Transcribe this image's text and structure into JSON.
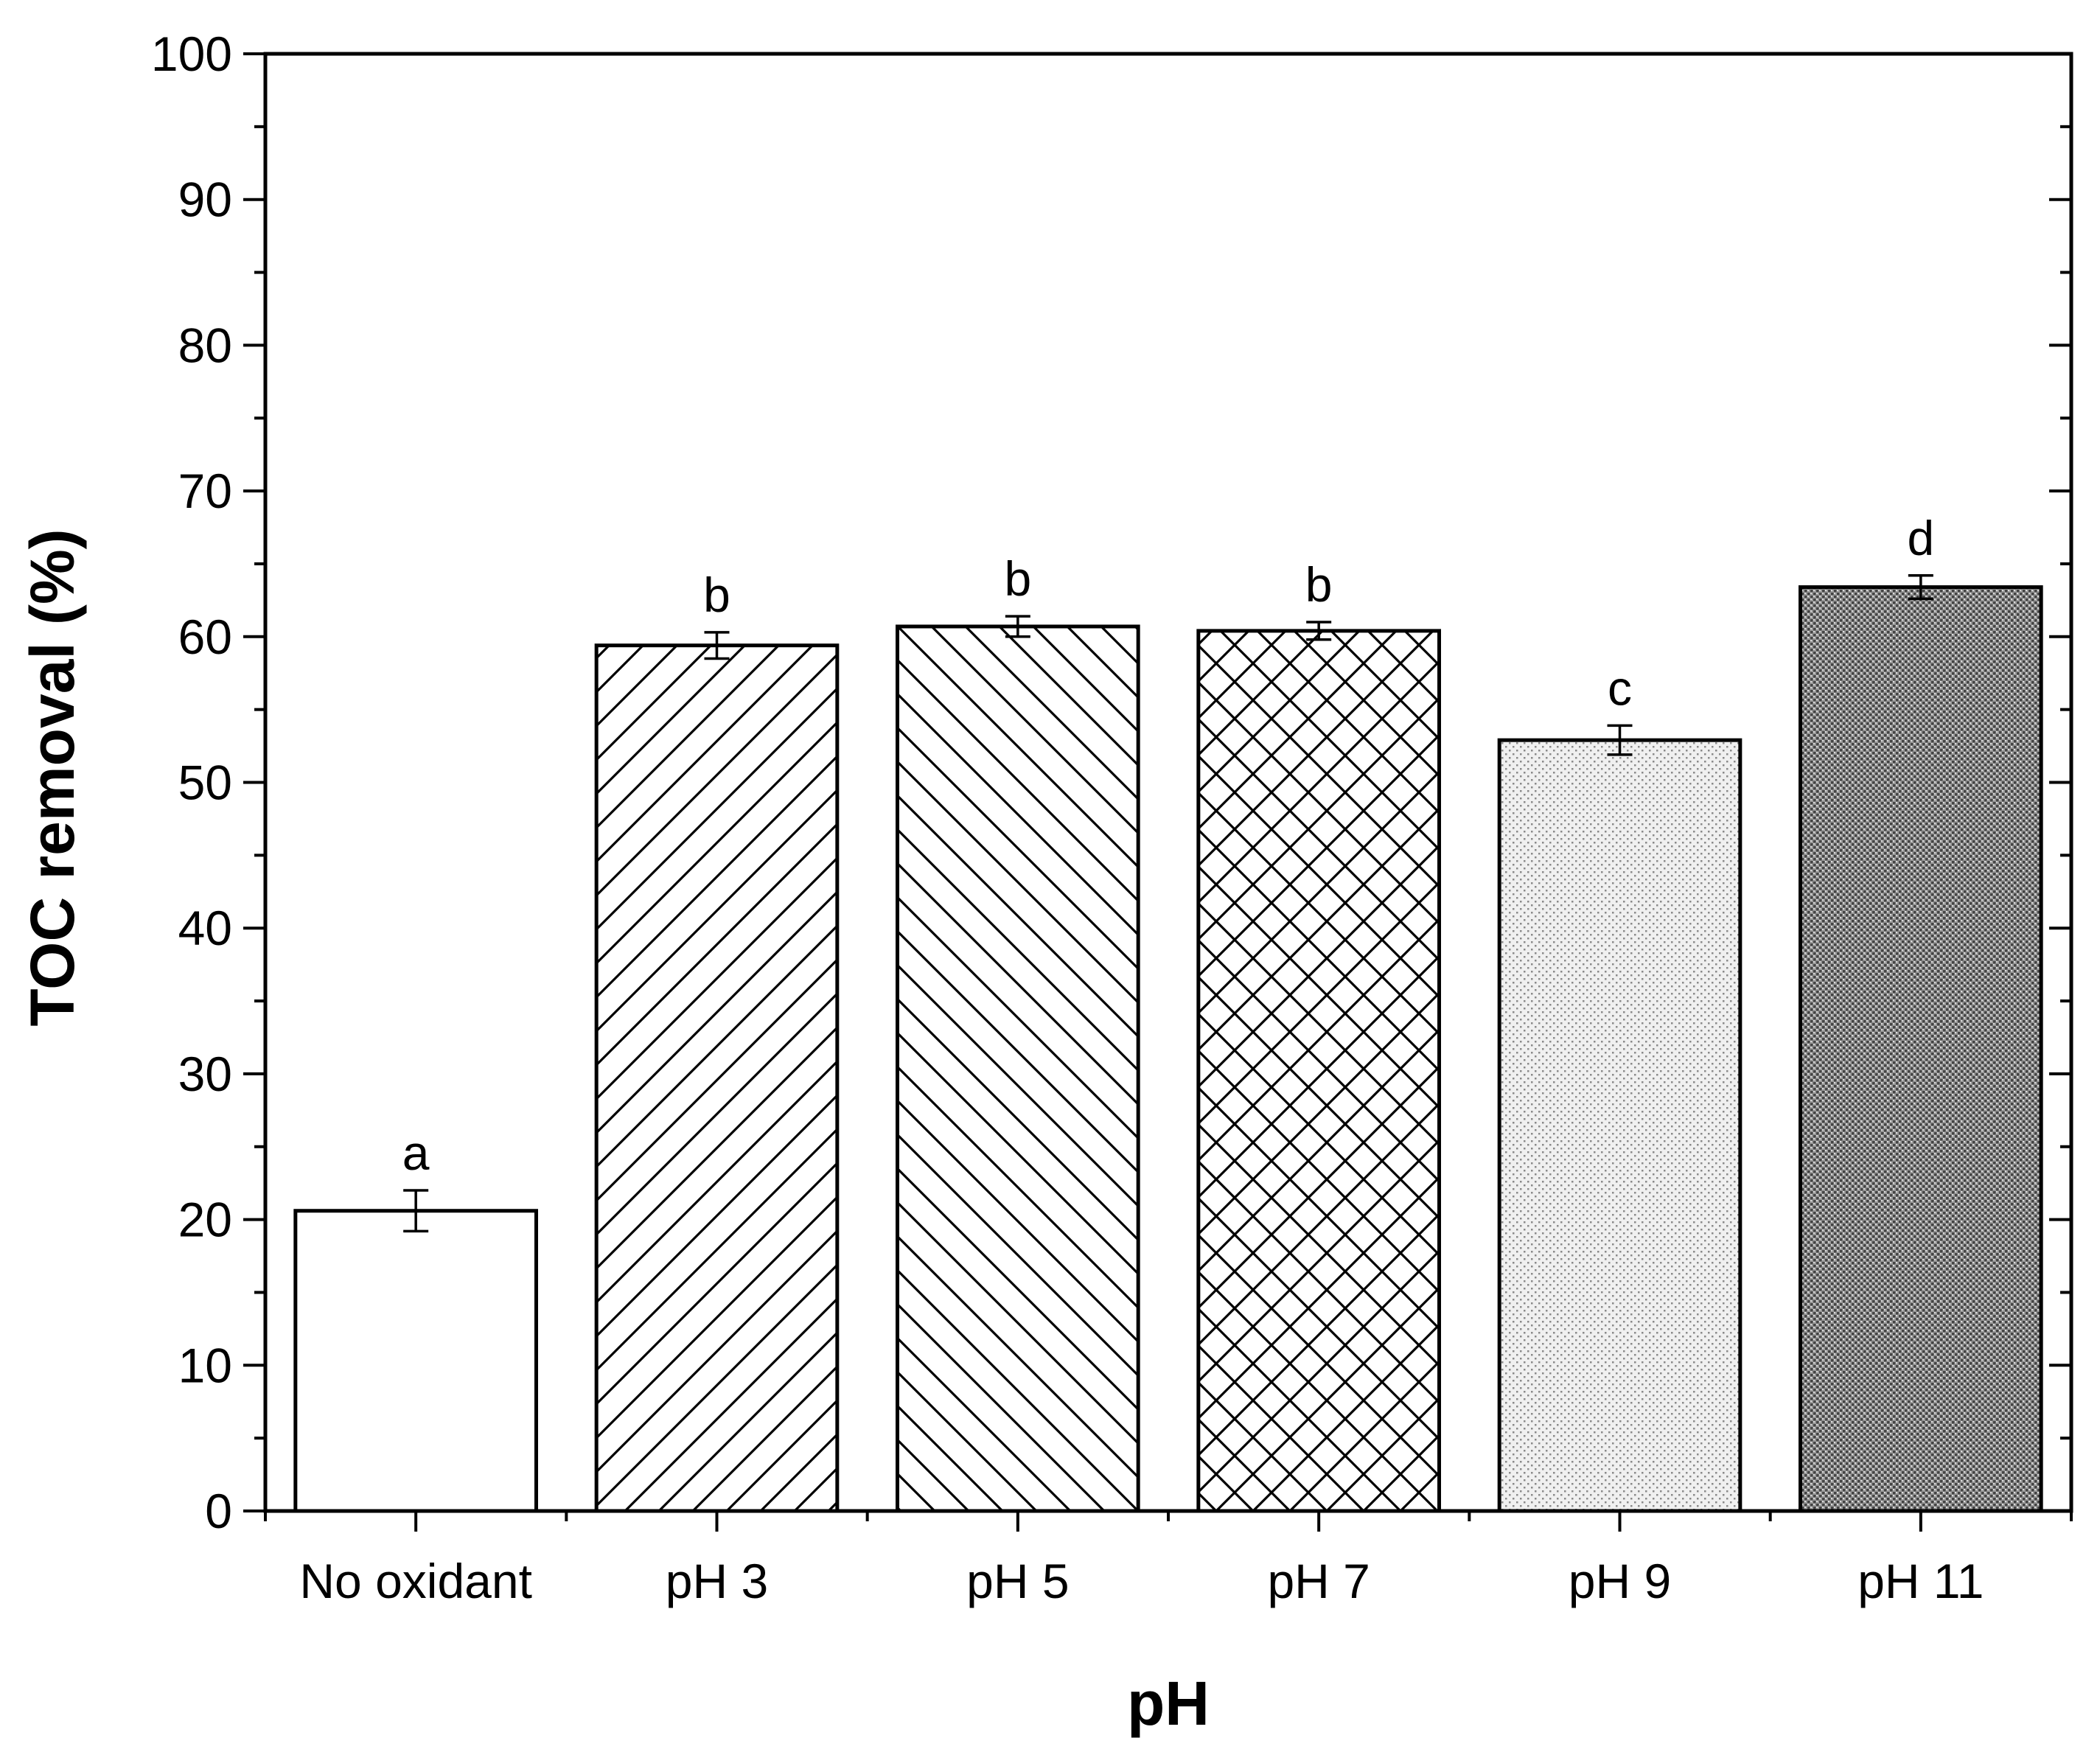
{
  "chart_data": {
    "type": "bar",
    "title": "",
    "xlabel": "pH",
    "ylabel": "TOC removal (%)",
    "ylim": [
      0,
      100
    ],
    "yticks": [
      0,
      10,
      20,
      30,
      40,
      50,
      60,
      70,
      80,
      90,
      100
    ],
    "y_minor_step": 5,
    "grid": false,
    "legend": "none",
    "categories": [
      "No oxidant",
      "pH 3",
      "pH 5",
      "pH 7",
      "pH 9",
      "pH 11"
    ],
    "values": [
      20.6,
      59.4,
      60.7,
      60.4,
      52.9,
      63.4
    ],
    "errors": [
      1.4,
      0.9,
      0.7,
      0.6,
      1.0,
      0.8
    ],
    "significance_labels": [
      "a",
      "b",
      "b",
      "b",
      "c",
      "d"
    ],
    "fill_patterns": [
      "solid-white",
      "forward-diagonal",
      "back-diagonal",
      "crosshatch",
      "fine-dots",
      "dense-dots"
    ],
    "colors": {
      "axis": "#000000",
      "bar_edge": "#000000",
      "bar_fill": "#ffffff",
      "pattern_line": "#000000",
      "fine_dots_background": "#f0f0f0",
      "dense_dots_background": "#9a9a9a"
    }
  }
}
